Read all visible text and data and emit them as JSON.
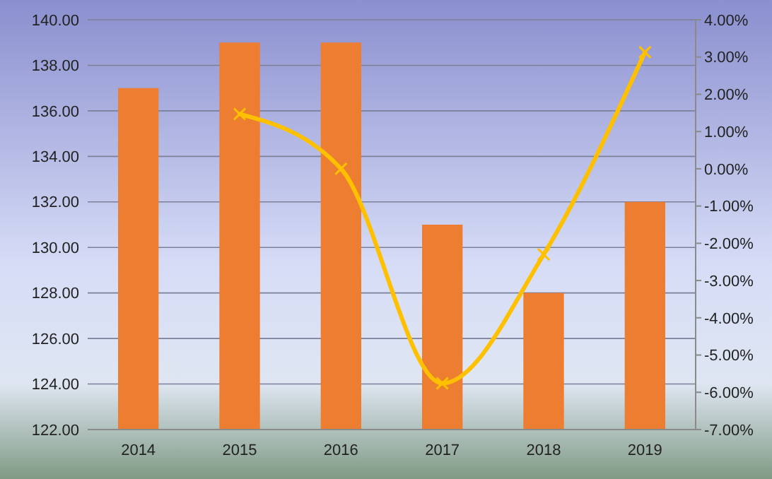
{
  "chart_data": {
    "type": "bar",
    "categories": [
      "2014",
      "2015",
      "2016",
      "2017",
      "2018",
      "2019"
    ],
    "series": [
      {
        "color": "#ed7d31",
        "values": [
          137,
          139,
          139,
          131,
          128,
          132
        ]
      },
      {
        "type": "line",
        "axis": "y2",
        "color": "#ffc000",
        "marker": "cross",
        "values": [
          null,
          1.47,
          0.0,
          -5.76,
          -2.3,
          3.13
        ]
      }
    ],
    "ylim": [
      122,
      140
    ],
    "yticks": [
      {
        "value": 122,
        "label": "122.00"
      },
      {
        "value": 124,
        "label": "124.00"
      },
      {
        "value": 126,
        "label": "126.00"
      },
      {
        "value": 128,
        "label": "128.00"
      },
      {
        "value": 130,
        "label": "130.00"
      },
      {
        "value": 132,
        "label": "132.00"
      },
      {
        "value": 134,
        "label": "134.00"
      },
      {
        "value": 136,
        "label": "136.00"
      },
      {
        "value": 138,
        "label": "138.00"
      },
      {
        "value": 140,
        "label": "140.00"
      }
    ],
    "y2lim": [
      -7,
      4
    ],
    "y2ticks": [
      {
        "value": -7,
        "label": "-7.00%"
      },
      {
        "value": -6,
        "label": "-6.00%"
      },
      {
        "value": -5,
        "label": "-5.00%"
      },
      {
        "value": -4,
        "label": "-4.00%"
      },
      {
        "value": -3,
        "label": "-3.00%"
      },
      {
        "value": -2,
        "label": "-2.00%"
      },
      {
        "value": -1,
        "label": "-1.00%"
      },
      {
        "value": 0,
        "label": "0.00%"
      },
      {
        "value": 1,
        "label": "1.00%"
      },
      {
        "value": 2,
        "label": "2.00%"
      },
      {
        "value": 3,
        "label": "3.00%"
      },
      {
        "value": 4,
        "label": "4.00%"
      }
    ],
    "grid": "y"
  }
}
